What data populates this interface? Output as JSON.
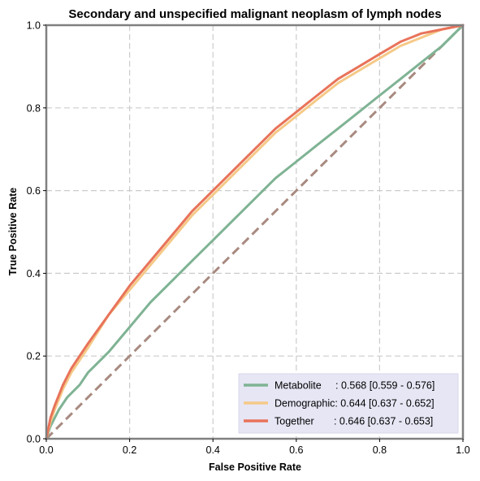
{
  "chart_data": {
    "type": "line",
    "title": "Secondary and unspecified malignant neoplasm of lymph nodes",
    "xlabel": "False Positive Rate",
    "ylabel": "True Positive Rate",
    "xlim": [
      0,
      1
    ],
    "ylim": [
      0,
      1
    ],
    "xticks": [
      "0.0",
      "0.2",
      "0.4",
      "0.6",
      "0.8",
      "1.0"
    ],
    "yticks": [
      "0.0",
      "0.2",
      "0.4",
      "0.6",
      "0.8",
      "1.0"
    ],
    "grid": true,
    "legend_position": "bottom-right",
    "colors": {
      "metabolite": "#7fb394",
      "demographic": "#f5c987",
      "together": "#e8735a",
      "diagonal": "#a88a80",
      "frame": "#808080",
      "grid": "#cccccc",
      "legend_bg": "#e6e6f5"
    },
    "series": [
      {
        "name": "Metabolite",
        "legend_label": "Metabolite     : 0.568 [0.559 - 0.576]",
        "x": [
          0,
          0.01,
          0.03,
          0.05,
          0.08,
          0.1,
          0.15,
          0.2,
          0.25,
          0.3,
          0.35,
          0.4,
          0.45,
          0.5,
          0.55,
          0.6,
          0.65,
          0.7,
          0.75,
          0.8,
          0.85,
          0.9,
          0.95,
          1.0
        ],
        "y": [
          0,
          0.03,
          0.07,
          0.1,
          0.13,
          0.16,
          0.21,
          0.27,
          0.33,
          0.38,
          0.43,
          0.48,
          0.53,
          0.58,
          0.63,
          0.67,
          0.71,
          0.75,
          0.79,
          0.83,
          0.87,
          0.91,
          0.95,
          1.0
        ]
      },
      {
        "name": "Demographic",
        "legend_label": "Demographic: 0.644 [0.637 - 0.652]",
        "x": [
          0,
          0.01,
          0.02,
          0.04,
          0.06,
          0.08,
          0.1,
          0.15,
          0.2,
          0.25,
          0.3,
          0.35,
          0.4,
          0.45,
          0.5,
          0.55,
          0.6,
          0.65,
          0.7,
          0.75,
          0.8,
          0.85,
          0.9,
          0.95,
          1.0
        ],
        "y": [
          0,
          0.04,
          0.07,
          0.12,
          0.16,
          0.19,
          0.22,
          0.3,
          0.36,
          0.42,
          0.48,
          0.54,
          0.59,
          0.64,
          0.69,
          0.74,
          0.78,
          0.82,
          0.86,
          0.89,
          0.92,
          0.95,
          0.97,
          0.99,
          1.0
        ]
      },
      {
        "name": "Together",
        "legend_label": "Together       : 0.646 [0.637 - 0.653]",
        "x": [
          0,
          0.01,
          0.02,
          0.04,
          0.06,
          0.08,
          0.1,
          0.15,
          0.2,
          0.25,
          0.3,
          0.35,
          0.4,
          0.45,
          0.5,
          0.55,
          0.6,
          0.65,
          0.7,
          0.75,
          0.8,
          0.85,
          0.9,
          0.95,
          1.0
        ],
        "y": [
          0,
          0.05,
          0.08,
          0.13,
          0.17,
          0.2,
          0.23,
          0.3,
          0.37,
          0.43,
          0.49,
          0.55,
          0.6,
          0.65,
          0.7,
          0.75,
          0.79,
          0.83,
          0.87,
          0.9,
          0.93,
          0.96,
          0.98,
          0.99,
          1.0
        ]
      }
    ],
    "reference_line": {
      "x": [
        0,
        1
      ],
      "y": [
        0,
        1
      ]
    }
  }
}
